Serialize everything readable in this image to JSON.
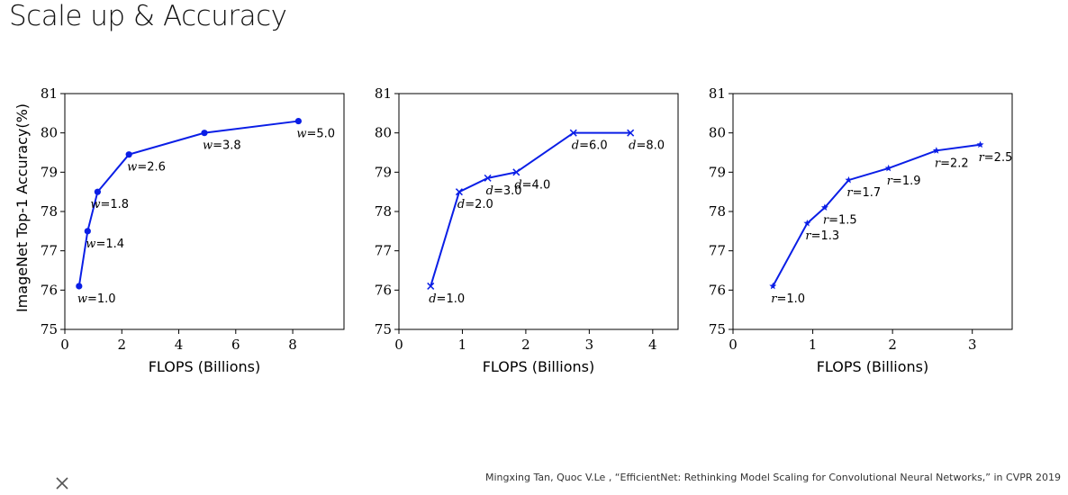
{
  "slide": {
    "title": "Scale up & Accuracy",
    "citation": "Mingxing Tan, Quoc V.Le , “EfficientNet: Rethinking Model Scaling for Convolutional Neural Networks,” in CVPR 2019"
  },
  "icons": {
    "close": "close-icon"
  },
  "colors": {
    "series": "#0a1ee6",
    "axis": "#000000"
  },
  "chart_data": [
    {
      "type": "line",
      "marker": "circle",
      "xlabel": "FLOPS (Billions)",
      "ylabel": "ImageNet Top-1 Accuracy(%)",
      "xlim": [
        0,
        9.8
      ],
      "ylim": [
        75,
        81
      ],
      "xticks": [
        0,
        2,
        4,
        6,
        8
      ],
      "yticks": [
        75,
        76,
        77,
        78,
        79,
        80,
        81
      ],
      "series": [
        {
          "points": [
            {
              "x": 0.5,
              "y": 76.1,
              "var": "w",
              "val": "=1.0"
            },
            {
              "x": 0.8,
              "y": 77.5,
              "var": "w",
              "val": "=1.4"
            },
            {
              "x": 1.15,
              "y": 78.5,
              "var": "w",
              "val": "=1.8"
            },
            {
              "x": 2.25,
              "y": 79.45,
              "var": "w",
              "val": "=2.6"
            },
            {
              "x": 4.9,
              "y": 80.0,
              "var": "w",
              "val": "=3.8"
            },
            {
              "x": 8.2,
              "y": 80.3,
              "var": "w",
              "val": "=5.0"
            }
          ]
        }
      ]
    },
    {
      "type": "line",
      "marker": "x",
      "xlabel": "FLOPS (Billions)",
      "ylabel": "",
      "xlim": [
        0,
        4.4
      ],
      "ylim": [
        75,
        81
      ],
      "xticks": [
        0,
        1,
        2,
        3,
        4
      ],
      "yticks": [
        75,
        76,
        77,
        78,
        79,
        80,
        81
      ],
      "series": [
        {
          "points": [
            {
              "x": 0.5,
              "y": 76.1,
              "var": "d",
              "val": "=1.0"
            },
            {
              "x": 0.95,
              "y": 78.5,
              "var": "d",
              "val": "=2.0"
            },
            {
              "x": 1.4,
              "y": 78.85,
              "var": "d",
              "val": "=3.0"
            },
            {
              "x": 1.85,
              "y": 79.0,
              "var": "d",
              "val": "=4.0"
            },
            {
              "x": 2.75,
              "y": 80.0,
              "var": "d",
              "val": "=6.0"
            },
            {
              "x": 3.65,
              "y": 80.0,
              "var": "d",
              "val": "=8.0"
            }
          ]
        }
      ]
    },
    {
      "type": "line",
      "marker": "star",
      "xlabel": "FLOPS (Billions)",
      "ylabel": "",
      "xlim": [
        0,
        3.5
      ],
      "ylim": [
        75,
        81
      ],
      "xticks": [
        0,
        1,
        2,
        3
      ],
      "yticks": [
        75,
        76,
        77,
        78,
        79,
        80,
        81
      ],
      "series": [
        {
          "points": [
            {
              "x": 0.5,
              "y": 76.1,
              "var": "r",
              "val": "=1.0"
            },
            {
              "x": 0.93,
              "y": 77.7,
              "var": "r",
              "val": "=1.3"
            },
            {
              "x": 1.15,
              "y": 78.1,
              "var": "r",
              "val": "=1.5"
            },
            {
              "x": 1.45,
              "y": 78.8,
              "var": "r",
              "val": "=1.7"
            },
            {
              "x": 1.95,
              "y": 79.1,
              "var": "r",
              "val": "=1.9"
            },
            {
              "x": 2.55,
              "y": 79.55,
              "var": "r",
              "val": "=2.2"
            },
            {
              "x": 3.1,
              "y": 79.7,
              "var": "r",
              "val": "=2.5"
            }
          ]
        }
      ]
    }
  ]
}
